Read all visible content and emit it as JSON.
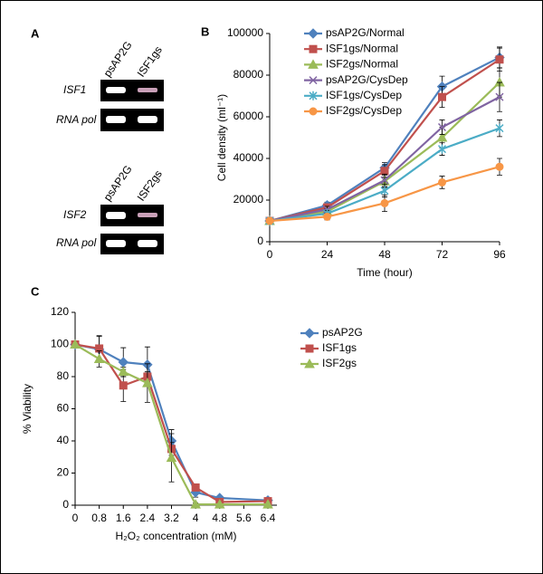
{
  "panel_a": {
    "label": "A",
    "blots": [
      {
        "lanes": [
          "psAP2G",
          "ISF1gs"
        ],
        "rows": [
          "ISF1",
          "RNA pol"
        ]
      },
      {
        "lanes": [
          "psAP2G",
          "ISF2gs"
        ],
        "rows": [
          "ISF2",
          "RNA pol"
        ]
      }
    ]
  },
  "chart_data": [
    {
      "type": "line",
      "label": "B",
      "x_label": "Time (hour)",
      "y_label": "Cell density (ml⁻¹)",
      "x": [
        0,
        24,
        48,
        72,
        96
      ],
      "xlim": [
        0,
        96
      ],
      "xticks": [
        0,
        24,
        48,
        72,
        96
      ],
      "ylim": [
        0,
        100000
      ],
      "yticks": [
        0,
        20000,
        40000,
        60000,
        80000,
        100000
      ],
      "series": [
        {
          "name": "psAP2G/Normal",
          "color": "#4f81bd",
          "marker": "diamond",
          "values": [
            10000,
            17500,
            35500,
            74500,
            88500
          ],
          "errors": [
            0,
            1500,
            2500,
            5000,
            5000
          ]
        },
        {
          "name": "ISF1gs/Normal",
          "color": "#c0504d",
          "marker": "square",
          "values": [
            10000,
            16500,
            34000,
            69500,
            87500
          ],
          "errors": [
            0,
            1500,
            3000,
            5000,
            5500
          ]
        },
        {
          "name": "ISF2gs/Normal",
          "color": "#9bbb59",
          "marker": "triangle",
          "values": [
            10000,
            14500,
            29000,
            50000,
            76500
          ],
          "errors": [
            0,
            1500,
            3000,
            5000,
            7000
          ]
        },
        {
          "name": "psAP2G/CysDep",
          "color": "#8064a2",
          "marker": "x",
          "values": [
            10000,
            15500,
            29500,
            55000,
            69500
          ],
          "errors": [
            0,
            1500,
            3000,
            3500,
            7000
          ]
        },
        {
          "name": "ISF1gs/CysDep",
          "color": "#4bacc6",
          "marker": "star",
          "values": [
            10000,
            13500,
            24500,
            44500,
            54500
          ],
          "errors": [
            0,
            1500,
            3000,
            3000,
            4000
          ]
        },
        {
          "name": "ISF2gs/CysDep",
          "color": "#f79646",
          "marker": "circle",
          "values": [
            10000,
            12000,
            18500,
            28500,
            36000
          ],
          "errors": [
            0,
            1500,
            4000,
            3000,
            4000
          ]
        }
      ]
    },
    {
      "type": "line",
      "label": "C",
      "x_label": "H₂O₂  concentration (mM)",
      "y_label": "% Viability",
      "x": [
        0,
        0.8,
        1.6,
        2.4,
        3.2,
        4,
        4.8,
        6.4
      ],
      "xlim": [
        0,
        6.7
      ],
      "xticks": [
        0,
        0.8,
        1.6,
        2.4,
        3.2,
        4,
        4.8,
        5.6,
        6.4
      ],
      "ylim": [
        0,
        120
      ],
      "yticks": [
        0,
        20,
        40,
        60,
        80,
        100,
        120
      ],
      "series": [
        {
          "name": "psAP2G",
          "color": "#4f81bd",
          "marker": "diamond",
          "values": [
            100,
            97,
            89,
            87.5,
            40,
            8,
            4.5,
            3
          ],
          "errors": [
            0,
            8,
            9,
            11,
            7,
            3,
            1,
            1
          ]
        },
        {
          "name": "ISF1gs",
          "color": "#c0504d",
          "marker": "square",
          "values": [
            100,
            97.5,
            74.5,
            80,
            35,
            11,
            2,
            2.5
          ],
          "errors": [
            0,
            8,
            10,
            3,
            4,
            2,
            1,
            1
          ]
        },
        {
          "name": "ISF2gs",
          "color": "#9bbb59",
          "marker": "triangle",
          "values": [
            100,
            91,
            83,
            76,
            29.5,
            0.5,
            0.5,
            0.5
          ],
          "errors": [
            0,
            5,
            3,
            12,
            15,
            1,
            0,
            0
          ]
        }
      ]
    }
  ]
}
